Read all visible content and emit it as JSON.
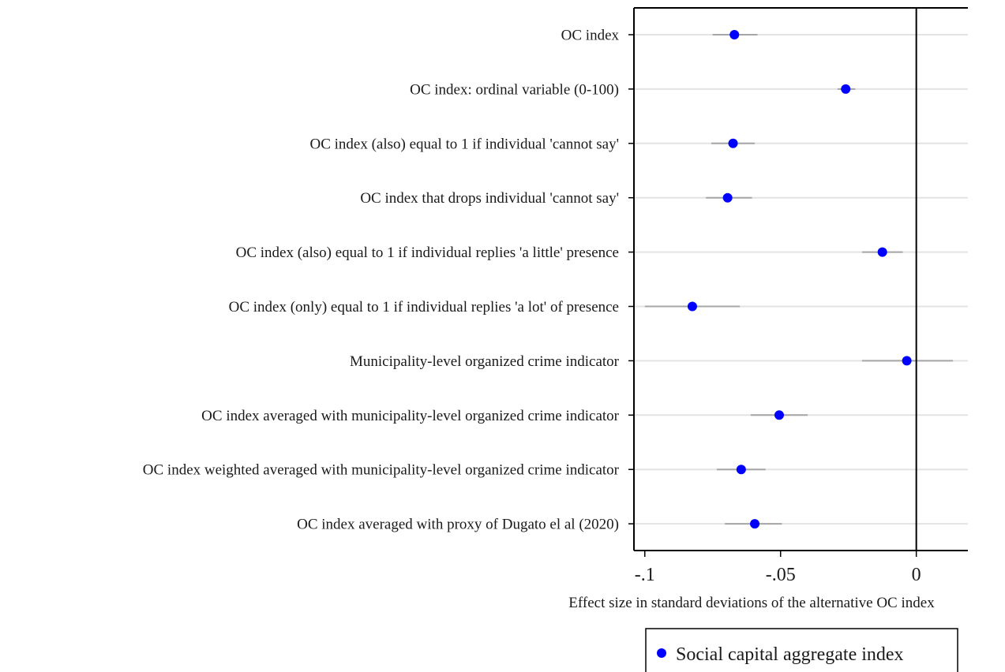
{
  "chart_data": {
    "type": "scatter",
    "orientation": "horizontal",
    "xlabel": "Effect size in standard deviations of the alternative OC index",
    "xlim": [
      -0.104,
      0.019
    ],
    "xticks": [
      -0.1,
      -0.05,
      0
    ],
    "xtick_labels": [
      "-.1",
      "-.05",
      "0"
    ],
    "reference_line_x": 0,
    "grid": "horizontal lines at each category",
    "categories": [
      "OC index",
      "OC index: ordinal variable (0-100)",
      "OC index (also) equal to 1 if individual 'cannot say'",
      "OC index that drops individual 'cannot say'",
      "OC index (also) equal to 1 if individual replies 'a little' presence",
      "OC index (only) equal to 1 if individual replies 'a lot' of presence",
      "Municipality-level organized crime indicator",
      "OC index averaged with municipality-level organized crime indicator",
      "OC index weighted averaged with municipality-level organized crime indicator",
      "OC index averaged with proxy of Dugato el al (2020)"
    ],
    "series": [
      {
        "name": "Social capital aggregate index",
        "color": "#0000ff",
        "values": [
          -0.067,
          -0.026,
          -0.0675,
          -0.0695,
          -0.0125,
          -0.0825,
          -0.0035,
          -0.0505,
          -0.0645,
          -0.0595
        ],
        "ci_low": [
          -0.075,
          -0.029,
          -0.0755,
          -0.0775,
          -0.02,
          -0.1,
          -0.02,
          -0.061,
          -0.0735,
          -0.0705
        ],
        "ci_high": [
          -0.0585,
          -0.0225,
          -0.0595,
          -0.0605,
          -0.005,
          -0.065,
          0.0135,
          -0.04,
          -0.0555,
          -0.0495
        ]
      }
    ],
    "legend": {
      "position": "bottom-right",
      "entries": [
        "Social capital aggregate index"
      ]
    },
    "colors": {
      "marker": "#0000ff",
      "ci": "#a6a6a6",
      "grid": "#e3e3e3",
      "axis": "#000000"
    }
  }
}
